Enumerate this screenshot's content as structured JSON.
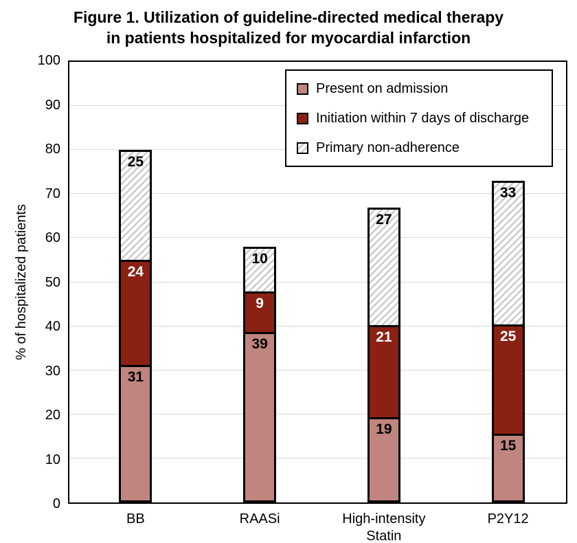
{
  "figure": {
    "title_line1": "Figure 1. Utilization of guideline-directed medical therapy",
    "title_line2": "in patients hospitalized for myocardial infarction"
  },
  "chart_data": {
    "type": "bar",
    "stacked": true,
    "title": "Figure 1. Utilization of guideline-directed medical therapy in patients hospitalized for myocardial infarction",
    "categories": [
      "BB",
      "RAASi",
      "High-intensity\nStatin",
      "P2Y12"
    ],
    "series": [
      {
        "name": "Present on admission",
        "values": [
          31,
          39,
          19,
          15
        ],
        "color": "#bf857e",
        "pattern": "solid",
        "label_color": "#000000"
      },
      {
        "name": "Initiation within 7 days of discharge",
        "values": [
          24,
          9,
          21,
          25
        ],
        "color": "#8a2113",
        "pattern": "solid",
        "label_color": "#ffffff"
      },
      {
        "name": "Primary non-adherence",
        "values": [
          25,
          10,
          27,
          33
        ],
        "color": "#ffffff",
        "pattern": "diagonal-hatch",
        "hatch_color": "#cbcbcb",
        "label_color": "#000000"
      }
    ],
    "totals": [
      80,
      58,
      67,
      73
    ],
    "xlabel": "",
    "ylabel": "% of hospitalized patients",
    "ylim": [
      0,
      100
    ],
    "yticks": [
      0,
      10,
      20,
      30,
      40,
      50,
      60,
      70,
      80,
      90,
      100
    ],
    "grid": true,
    "gridline_color": "#d9d9d9",
    "bar_border_color": "#000000",
    "legend_position": "top-right-inside"
  }
}
